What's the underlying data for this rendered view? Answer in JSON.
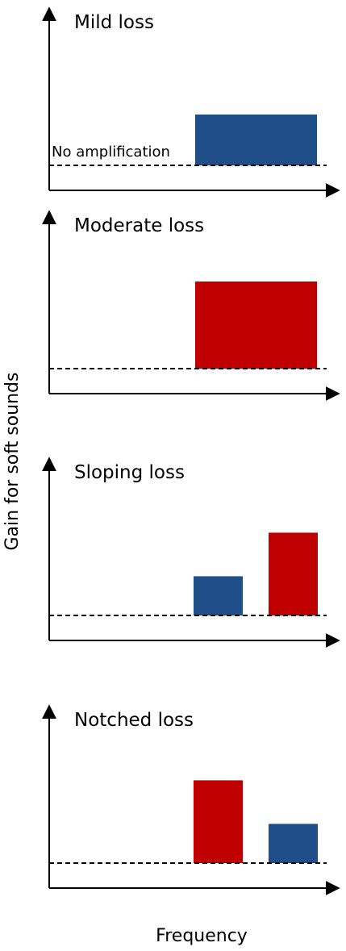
{
  "figure": {
    "y_axis_label": "Gain for soft sounds",
    "x_axis_label": "Frequency",
    "baseline_label": "No amplification"
  },
  "colors": {
    "blue": "#1f4e89",
    "red": "#c00000",
    "axis": "#000000"
  },
  "panels": [
    {
      "title": "Mild loss",
      "bars": [
        {
          "band": "wide",
          "gain": 0.35,
          "color": "blue"
        }
      ]
    },
    {
      "title": "Moderate loss",
      "bars": [
        {
          "band": "wide",
          "gain": 0.6,
          "color": "red"
        }
      ]
    },
    {
      "title": "Sloping loss",
      "bars": [
        {
          "band": "mid",
          "gain": 0.27,
          "color": "blue"
        },
        {
          "band": "high",
          "gain": 0.57,
          "color": "red"
        }
      ]
    },
    {
      "title": "Notched loss",
      "bars": [
        {
          "band": "mid",
          "gain": 0.57,
          "color": "red"
        },
        {
          "band": "high",
          "gain": 0.27,
          "color": "blue"
        }
      ]
    }
  ]
}
